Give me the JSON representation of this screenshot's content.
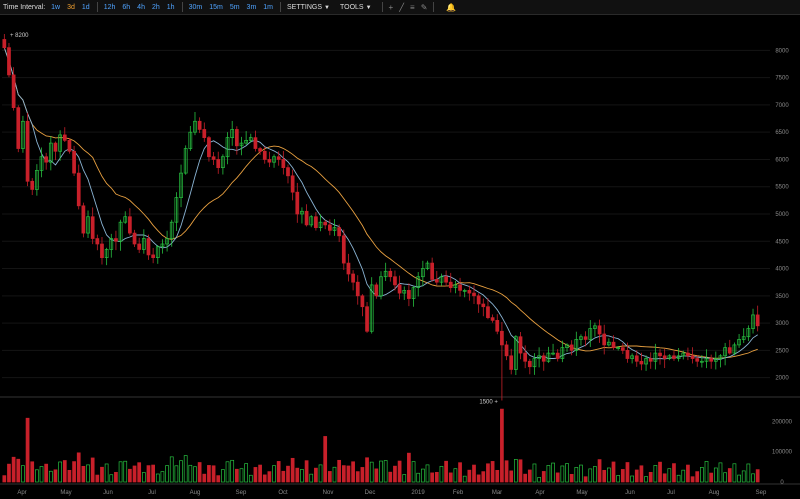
{
  "toolbar": {
    "time_interval_label": "Time Interval:",
    "intervals": [
      "1w",
      "3d",
      "1d",
      "12h",
      "6h",
      "4h",
      "2h",
      "1h",
      "30m",
      "15m",
      "5m",
      "3m",
      "1m"
    ],
    "active_interval": "3d",
    "settings_label": "SETTINGS",
    "tools_label": "TOOLS",
    "tool_icons": [
      "crosshair-icon",
      "line-icon",
      "lines-icon",
      "draw-icon"
    ],
    "alert_icon": "bell-icon"
  },
  "colors": {
    "up": "#27c040",
    "down": "#c8202a",
    "ma_fast": "#8ab4d4",
    "ma_slow": "#e8a040",
    "background": "#000000"
  },
  "chart_data": {
    "type": "candlestick",
    "price_axis": {
      "ticks": [
        2000,
        2500,
        3000,
        3500,
        4000,
        4500,
        5000,
        5500,
        6000,
        6500,
        7000,
        7500,
        8000
      ],
      "range": [
        1700,
        8300
      ]
    },
    "volume_axis": {
      "ticks": [
        "0",
        "100000",
        "200000"
      ],
      "range": [
        0,
        270000
      ]
    },
    "x_labels": [
      "Apr",
      "May",
      "Jun",
      "Jul",
      "Aug",
      "Sep",
      "Oct",
      "Nov",
      "Dec",
      "2019",
      "Feb",
      "Mar",
      "Apr",
      "May",
      "Jun",
      "Jul",
      "Aug",
      "Sep"
    ],
    "annotations": {
      "high_label": "8200",
      "low_label": "1500"
    },
    "close": [
      8050,
      7550,
      6950,
      6200,
      6700,
      5600,
      5450,
      5800,
      6050,
      5950,
      6300,
      6150,
      6450,
      6350,
      6150,
      5750,
      5150,
      4650,
      4950,
      4550,
      4450,
      4200,
      4350,
      4550,
      4500,
      4850,
      4950,
      4650,
      4450,
      4350,
      4550,
      4250,
      4200,
      4400,
      4450,
      4550,
      4850,
      5300,
      5750,
      6200,
      6500,
      6700,
      6550,
      6400,
      6050,
      6000,
      5850,
      6050,
      6400,
      6550,
      6250,
      6300,
      6350,
      6400,
      6200,
      6150,
      6000,
      5950,
      6050,
      6000,
      5850,
      5700,
      5400,
      5000,
      5050,
      4800,
      4950,
      4750,
      4850,
      4800,
      4700,
      4750,
      4600,
      4100,
      3900,
      3750,
      3500,
      3300,
      2850,
      3700,
      3500,
      3850,
      3950,
      3850,
      3700,
      3550,
      3600,
      3450,
      3650,
      3850,
      4000,
      4100,
      3800,
      3750,
      3850,
      3750,
      3650,
      3700,
      3600,
      3600,
      3550,
      3500,
      3350,
      3300,
      3100,
      3050,
      2850,
      2600,
      2400,
      2150,
      2750,
      2450,
      2300,
      2200,
      2350,
      2400,
      2300,
      2450,
      2450,
      2350,
      2550,
      2600,
      2500,
      2700,
      2750,
      2700,
      2900,
      2950,
      2800,
      2600,
      2650,
      2550,
      2550,
      2500,
      2350,
      2400,
      2300,
      2250,
      2350,
      2300,
      2450,
      2400,
      2350,
      2400,
      2350,
      2400,
      2450,
      2400,
      2350,
      2300,
      2300,
      2350,
      2300,
      2350,
      2400,
      2550,
      2450,
      2600,
      2700,
      2750,
      2900,
      3150,
      2950
    ]
  }
}
